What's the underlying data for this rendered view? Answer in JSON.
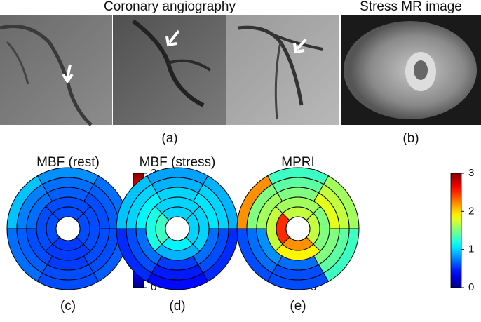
{
  "figure": {
    "panel_a": {
      "title": "Coronary angiography",
      "label": "(a)"
    },
    "panel_b": {
      "title": "Stress MR image",
      "label": "(b)"
    },
    "colorbar": {
      "lim": [
        0,
        3
      ],
      "ticks": [
        0,
        1,
        2,
        3
      ]
    },
    "bullseyes": [
      {
        "title": "MBF (rest)",
        "label": "(c)",
        "rings": [
          [
            0.7,
            0.8,
            0.95,
            0.7,
            0.6,
            0.65
          ],
          [
            0.65,
            0.7,
            0.75,
            0.65,
            0.6,
            0.6
          ],
          [
            0.6,
            0.65,
            0.7,
            0.6,
            0.55,
            0.6
          ],
          [
            0.6,
            0.6,
            0.55,
            0.6
          ],
          [
            0.6,
            0.6,
            0.55,
            0.6
          ]
        ]
      },
      {
        "title": "MBF (stress)",
        "label": "(d)",
        "rings": [
          [
            0.9,
            0.85,
            0.95,
            0.5,
            0.4,
            0.5
          ],
          [
            1.0,
            0.9,
            1.0,
            0.6,
            0.45,
            0.6
          ],
          [
            1.05,
            1.0,
            1.1,
            0.7,
            0.55,
            0.7
          ],
          [
            1.0,
            1.2,
            0.9,
            1.0
          ],
          [
            1.0,
            1.3,
            1.1,
            1.0
          ]
        ]
      },
      {
        "title": "MPRI",
        "label": "(e)",
        "rings": [
          [
            1.6,
            1.3,
            2.2,
            0.6,
            0.6,
            1.3
          ],
          [
            1.7,
            1.4,
            1.5,
            0.7,
            0.6,
            1.4
          ],
          [
            1.8,
            1.5,
            1.6,
            0.8,
            0.7,
            1.5
          ],
          [
            1.6,
            1.7,
            1.9,
            1.5
          ],
          [
            1.7,
            2.5,
            2.2,
            1.7
          ]
        ]
      }
    ]
  }
}
